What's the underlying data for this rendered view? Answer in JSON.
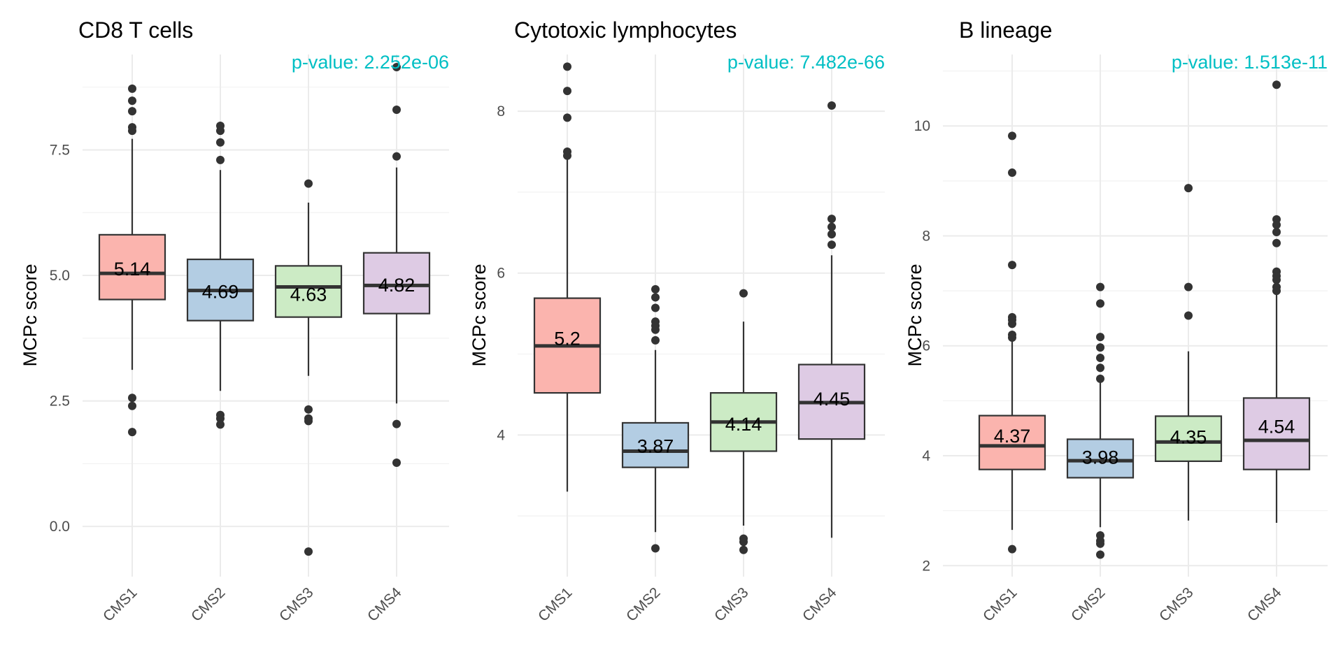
{
  "chart_data": [
    {
      "type": "boxplot",
      "title": "CD8 T cells",
      "ylabel": "MCPc score",
      "annotation": "p-value: 2.252e-06",
      "annotation_color": "#00BFC4",
      "categories": [
        "CMS1",
        "CMS2",
        "CMS3",
        "CMS4"
      ],
      "colors": [
        "#FBB4AE",
        "#B3CDE3",
        "#CCEBC5",
        "#DECBE4"
      ],
      "ylim": [
        -1.0,
        9.4
      ],
      "yticks": [
        0.0,
        2.5,
        5.0,
        7.5
      ],
      "ytick_labels": [
        "0.0",
        "2.5",
        "5.0",
        "7.5"
      ],
      "labels": [
        "5.14",
        "4.69",
        "4.63",
        "4.82"
      ],
      "boxes": [
        {
          "q1": 4.52,
          "median": 5.04,
          "q3": 5.81,
          "whisker_low": 3.12,
          "whisker_high": 7.72,
          "outliers": [
            8.72,
            8.48,
            8.27,
            7.95,
            7.88,
            2.56,
            2.4,
            1.88
          ]
        },
        {
          "q1": 4.1,
          "median": 4.7,
          "q3": 5.32,
          "whisker_low": 2.7,
          "whisker_high": 7.1,
          "outliers": [
            7.98,
            7.88,
            7.65,
            7.3,
            2.22,
            2.15,
            2.03
          ]
        },
        {
          "q1": 4.17,
          "median": 4.77,
          "q3": 5.19,
          "whisker_low": 3.0,
          "whisker_high": 6.45,
          "outliers": [
            6.83,
            2.33,
            2.15,
            2.1,
            -0.5
          ]
        },
        {
          "q1": 4.24,
          "median": 4.8,
          "q3": 5.45,
          "whisker_low": 2.45,
          "whisker_high": 7.15,
          "outliers": [
            9.15,
            8.3,
            7.37,
            2.04,
            1.27
          ]
        }
      ]
    },
    {
      "type": "boxplot",
      "title": "Cytotoxic lymphocytes",
      "ylabel": "MCPc score",
      "annotation": "p-value: 7.482e-66",
      "annotation_color": "#00BFC4",
      "categories": [
        "CMS1",
        "CMS2",
        "CMS3",
        "CMS4"
      ],
      "colors": [
        "#FBB4AE",
        "#B3CDE3",
        "#CCEBC5",
        "#DECBE4"
      ],
      "ylim": [
        2.25,
        8.7
      ],
      "yticks": [
        4,
        6,
        8
      ],
      "ytick_labels": [
        "4",
        "6",
        "8"
      ],
      "labels": [
        "5.2",
        "3.87",
        "4.14",
        "4.45"
      ],
      "boxes": [
        {
          "q1": 4.52,
          "median": 5.1,
          "q3": 5.69,
          "whisker_low": 3.3,
          "whisker_high": 7.4,
          "outliers": [
            8.55,
            8.25,
            7.92,
            7.5,
            7.45
          ]
        },
        {
          "q1": 3.6,
          "median": 3.8,
          "q3": 4.15,
          "whisker_low": 2.8,
          "whisker_high": 5.05,
          "outliers": [
            5.8,
            5.7,
            5.57,
            5.4,
            5.35,
            5.3,
            5.17,
            2.6
          ]
        },
        {
          "q1": 3.8,
          "median": 4.16,
          "q3": 4.52,
          "whisker_low": 2.88,
          "whisker_high": 5.4,
          "outliers": [
            5.75,
            2.72,
            2.68,
            2.58
          ]
        },
        {
          "q1": 3.95,
          "median": 4.4,
          "q3": 4.87,
          "whisker_low": 2.73,
          "whisker_high": 6.22,
          "outliers": [
            8.07,
            6.67,
            6.57,
            6.48,
            6.35
          ]
        }
      ]
    },
    {
      "type": "boxplot",
      "title": "B lineage",
      "ylabel": "MCPc score",
      "annotation": "p-value: 1.513e-11",
      "annotation_color": "#00BFC4",
      "categories": [
        "CMS1",
        "CMS2",
        "CMS3",
        "CMS4"
      ],
      "colors": [
        "#FBB4AE",
        "#B3CDE3",
        "#CCEBC5",
        "#DECBE4"
      ],
      "ylim": [
        1.8,
        11.3
      ],
      "yticks": [
        2,
        4,
        6,
        8,
        10
      ],
      "ytick_labels": [
        "2",
        "4",
        "6",
        "8",
        "10"
      ],
      "labels": [
        "4.37",
        "3.98",
        "4.35",
        "4.54"
      ],
      "boxes": [
        {
          "q1": 3.75,
          "median": 4.18,
          "q3": 4.73,
          "whisker_low": 2.65,
          "whisker_high": 6.15,
          "outliers": [
            9.82,
            9.15,
            7.47,
            6.52,
            6.47,
            6.4,
            6.2,
            6.15,
            2.3
          ]
        },
        {
          "q1": 3.6,
          "median": 3.91,
          "q3": 4.3,
          "whisker_low": 2.7,
          "whisker_high": 5.35,
          "outliers": [
            7.07,
            6.77,
            6.16,
            5.97,
            5.78,
            5.6,
            5.4,
            2.55,
            2.45,
            2.4,
            2.2
          ]
        },
        {
          "q1": 3.9,
          "median": 4.25,
          "q3": 4.72,
          "whisker_low": 2.82,
          "whisker_high": 5.9,
          "outliers": [
            8.87,
            7.07,
            6.55
          ]
        },
        {
          "q1": 3.75,
          "median": 4.28,
          "q3": 5.05,
          "whisker_low": 2.78,
          "whisker_high": 7.0,
          "outliers": [
            10.75,
            8.3,
            8.2,
            8.07,
            7.87,
            7.35,
            7.27,
            7.2,
            7.07,
            7.0
          ]
        }
      ]
    }
  ]
}
